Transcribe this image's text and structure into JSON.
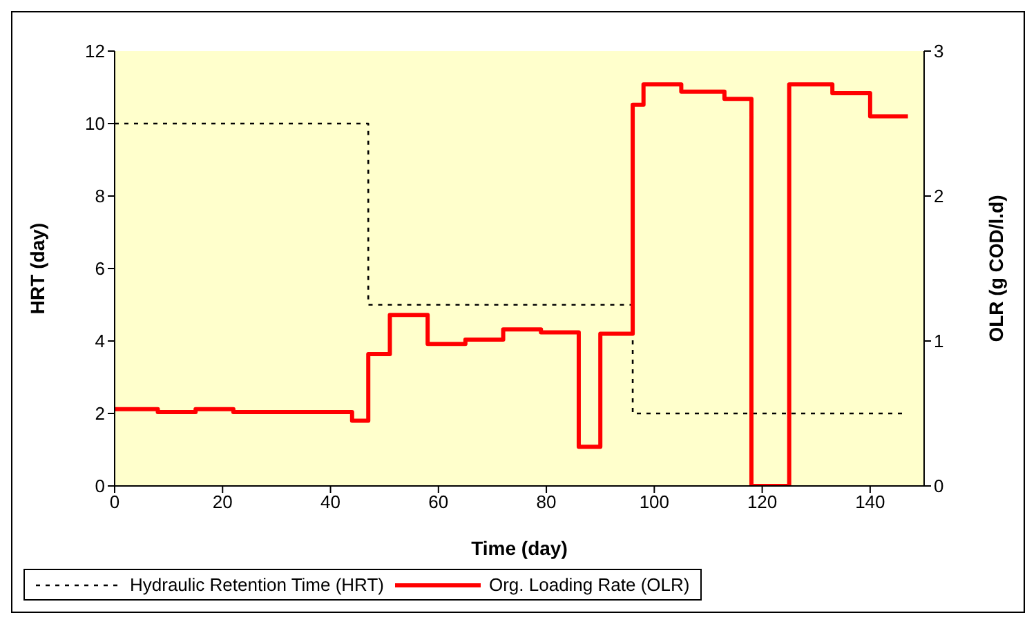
{
  "chart_data": {
    "type": "step",
    "xlabel": "Time (day)",
    "ylabel": "HRT (day)",
    "y2label": "OLR (g COD/l.d)",
    "xlim": [
      0,
      150
    ],
    "xticks": [
      0,
      20,
      40,
      60,
      80,
      100,
      120,
      140
    ],
    "ylim": [
      0,
      12
    ],
    "yticks": [
      0,
      2,
      4,
      6,
      8,
      10,
      12
    ],
    "y2lim": [
      0,
      3
    ],
    "y2ticks": [
      0,
      1,
      2,
      3
    ],
    "grid": false,
    "legend": "bottom",
    "marker": "none",
    "series": [
      {
        "name": "Hydraulic Retention Time (HRT)",
        "color": "#000000",
        "line_style": "dotted",
        "x": [
          0,
          47,
          96,
          146
        ],
        "values": [
          10,
          5,
          2,
          2
        ]
      },
      {
        "name": "Org. Loading Rate (OLR)",
        "color": "#ff0000",
        "line_style": "solid",
        "axis": "y2",
        "x": [
          0,
          8,
          15,
          22,
          44,
          47,
          51,
          58,
          65,
          72,
          79,
          86,
          90,
          96,
          98,
          105,
          113,
          118,
          125,
          133,
          140,
          147
        ],
        "values": [
          0.53,
          0.51,
          0.53,
          0.51,
          0.45,
          0.91,
          1.18,
          0.98,
          1.01,
          1.08,
          1.06,
          0.27,
          1.05,
          2.63,
          2.77,
          2.72,
          2.67,
          0,
          2.77,
          2.71,
          2.55,
          2.55
        ]
      }
    ]
  }
}
